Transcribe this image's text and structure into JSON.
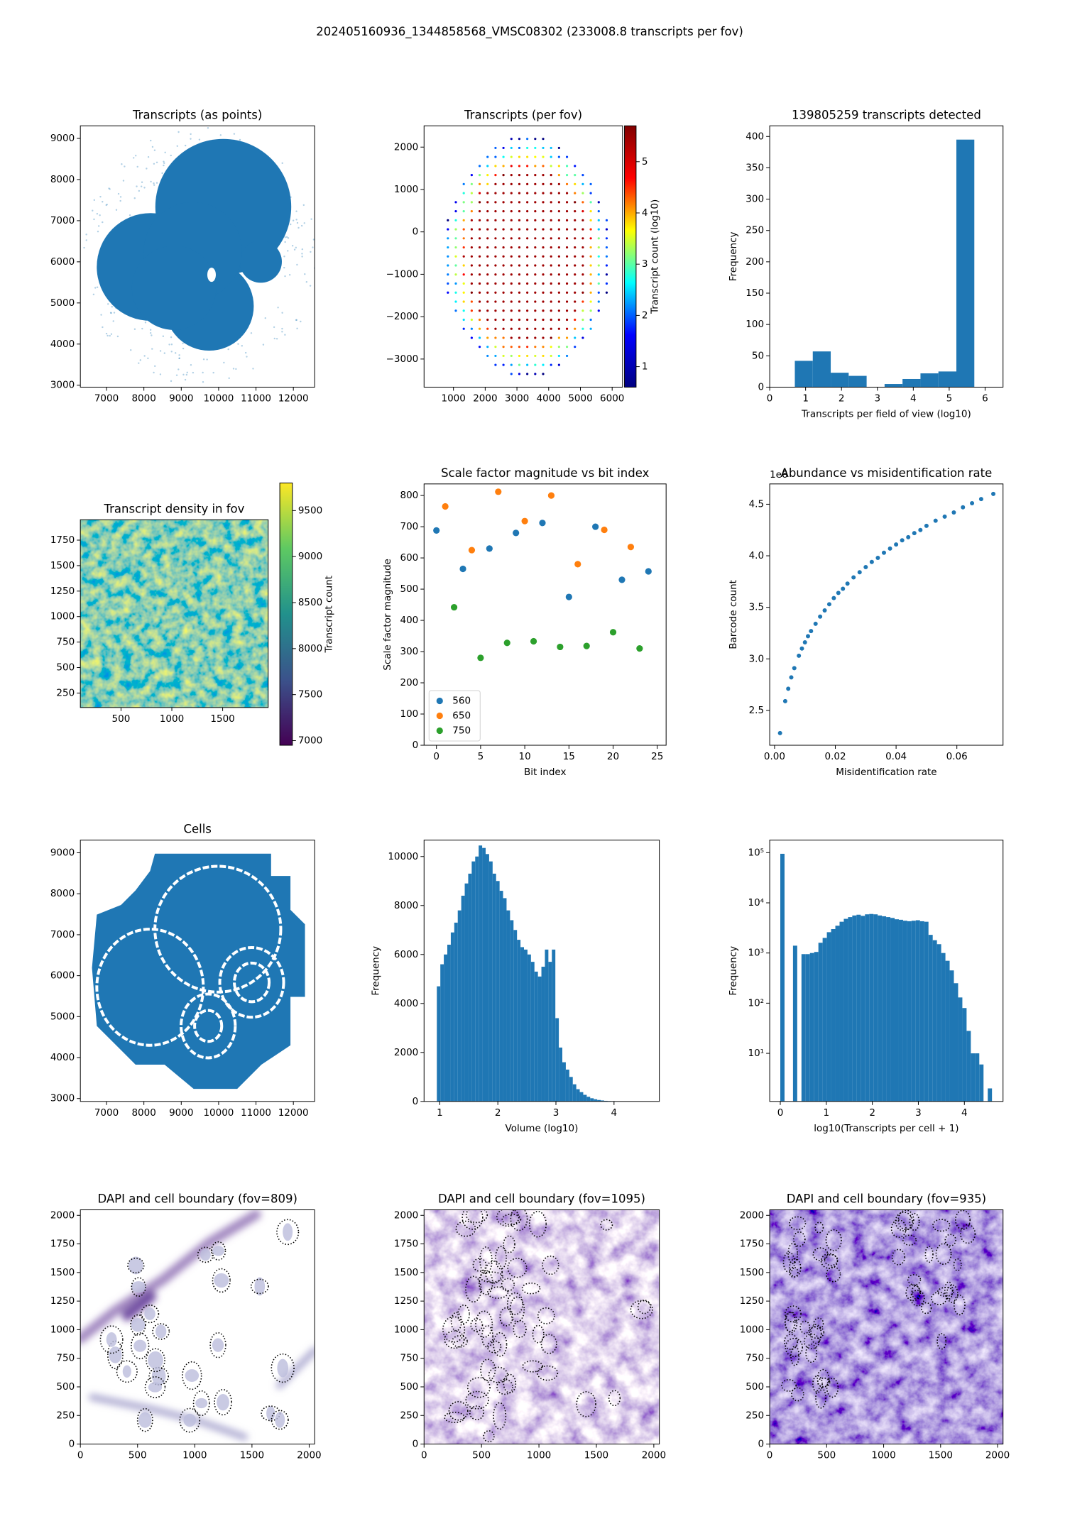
{
  "figure_title": "202405160936_1344858568_VMSC08302 (233008.8 transcripts per fov)",
  "chart_data": [
    {
      "type": "scatter",
      "title": "Transcripts (as points)",
      "xlim": [
        6300,
        12570
      ],
      "ylim": [
        2953,
        9306
      ],
      "xticks": [
        7000,
        8000,
        9000,
        10000,
        11000,
        12000
      ],
      "yticks": [
        3000,
        4000,
        5000,
        6000,
        7000,
        8000,
        9000
      ],
      "color": "#1f77b4"
    },
    {
      "type": "scatter",
      "title": "Transcripts (per fov)",
      "xlim": [
        74,
        6327
      ],
      "ylim": [
        -3663,
        2502
      ],
      "xticks": [
        1000,
        2000,
        3000,
        4000,
        5000,
        6000
      ],
      "yticks": [
        {
          "value": -3000,
          "label": "−3000"
        },
        {
          "value": -2000,
          "label": "−2000"
        },
        {
          "value": -1000,
          "label": "−1000"
        },
        0,
        1000,
        2000
      ],
      "colorbar": {
        "label": "Transcript count (log10)",
        "cmap": "jet",
        "clim": [
          0.6,
          5.7
        ],
        "ticks": [
          1,
          2,
          3,
          4,
          5
        ]
      }
    },
    {
      "type": "histogram",
      "title": "139805259 transcripts detected",
      "xlabel": "Transcripts per field of view (log10)",
      "ylabel": "Frequency",
      "xlim": [
        0,
        6.5
      ],
      "ylim": [
        0,
        417
      ],
      "xticks": [
        0,
        1,
        2,
        3,
        4,
        5,
        6
      ],
      "yticks": [
        0,
        50,
        100,
        150,
        200,
        250,
        300,
        350,
        400
      ],
      "color": "#1f77b4",
      "bins": [
        0.7,
        1.2,
        1.7,
        2.2,
        2.7,
        3.2,
        3.7,
        4.2,
        4.7,
        5.2,
        5.7
      ],
      "values": [
        42,
        57,
        23,
        18,
        0,
        5,
        13,
        22,
        25,
        395
      ]
    },
    {
      "type": "heatmap",
      "title": "Transcript density in fov",
      "xlim": [
        100,
        1948
      ],
      "ylim": [
        108,
        1950
      ],
      "xticks": [
        500,
        1000,
        1500
      ],
      "yticks": [
        250,
        500,
        750,
        1000,
        1250,
        1500,
        1750
      ],
      "colorbar": {
        "label": "Transcript count",
        "cmap": "viridis",
        "clim": [
          6950,
          9800
        ],
        "ticks": [
          7000,
          7500,
          8000,
          8500,
          9000,
          9500
        ]
      }
    },
    {
      "type": "scatter",
      "title": "Scale factor magnitude vs bit index",
      "xlabel": "Bit index",
      "ylabel": "Scale factor magnitude",
      "xlim": [
        -1.4,
        26
      ],
      "ylim": [
        0,
        837
      ],
      "xticks": [
        0,
        5,
        10,
        15,
        20,
        25
      ],
      "yticks": [
        0,
        100,
        200,
        300,
        400,
        500,
        600,
        700,
        800
      ],
      "legend": "lower left",
      "series": [
        {
          "name": "560",
          "color": "#1f77b4",
          "x": [
            0,
            3,
            6,
            9,
            12,
            15,
            18,
            21,
            24
          ],
          "values": [
            688,
            565,
            630,
            680,
            712,
            475,
            700,
            530,
            557
          ]
        },
        {
          "name": "650",
          "color": "#ff7f0e",
          "x": [
            1,
            4,
            7,
            10,
            13,
            16,
            19,
            22
          ],
          "values": [
            765,
            625,
            812,
            718,
            800,
            580,
            690,
            635
          ]
        },
        {
          "name": "750",
          "color": "#2ca02c",
          "x": [
            2,
            5,
            8,
            11,
            14,
            17,
            20,
            23
          ],
          "values": [
            442,
            280,
            328,
            333,
            315,
            318,
            362,
            310
          ]
        }
      ]
    },
    {
      "type": "scatter",
      "title": "Abundance vs misidentification rate",
      "xlabel": "Misidentification rate",
      "ylabel": "Barcode count",
      "y_offset_label": "1e6",
      "xlim": [
        -0.0016,
        0.0752
      ],
      "ylim": [
        2.162,
        4.697
      ],
      "xticks": [
        {
          "value": 0,
          "label": "0.00"
        },
        {
          "value": 0.02,
          "label": "0.02"
        },
        {
          "value": 0.04,
          "label": "0.04"
        },
        {
          "value": 0.06,
          "label": "0.06"
        }
      ],
      "yticks": [
        2.5,
        {
          "value": 3,
          "label": "3.0"
        },
        3.5,
        {
          "value": 4,
          "label": "4.0"
        },
        4.5
      ],
      "color": "#1f77b4",
      "x": [
        0.0018,
        0.0035,
        0.0045,
        0.0055,
        0.0065,
        0.008,
        0.009,
        0.01,
        0.011,
        0.012,
        0.0135,
        0.015,
        0.0165,
        0.018,
        0.0195,
        0.021,
        0.0225,
        0.024,
        0.026,
        0.028,
        0.03,
        0.032,
        0.034,
        0.036,
        0.038,
        0.04,
        0.042,
        0.044,
        0.046,
        0.048,
        0.05,
        0.053,
        0.056,
        0.059,
        0.062,
        0.065,
        0.068,
        0.072
      ],
      "values": [
        2.28,
        2.59,
        2.71,
        2.82,
        2.91,
        3.03,
        3.1,
        3.16,
        3.22,
        3.27,
        3.34,
        3.41,
        3.47,
        3.53,
        3.59,
        3.64,
        3.68,
        3.73,
        3.79,
        3.84,
        3.89,
        3.94,
        3.98,
        4.03,
        4.07,
        4.11,
        4.15,
        4.18,
        4.22,
        4.25,
        4.29,
        4.34,
        4.38,
        4.42,
        4.47,
        4.51,
        4.55,
        4.6
      ]
    },
    {
      "type": "scatter",
      "title": "Cells",
      "xlim": [
        6300,
        12570
      ],
      "ylim": [
        2929,
        9310
      ],
      "xticks": [
        7000,
        8000,
        9000,
        10000,
        11000,
        12000
      ],
      "yticks": [
        3000,
        4000,
        5000,
        6000,
        7000,
        8000,
        9000
      ],
      "color": "#1f77b4"
    },
    {
      "type": "histogram",
      "xlabel": "Volume (log10)",
      "ylabel": "Frequency",
      "xlim": [
        0.73,
        4.78
      ],
      "ylim": [
        0,
        10670
      ],
      "xticks": [
        1,
        2,
        3,
        4
      ],
      "yticks": [
        0,
        2000,
        4000,
        6000,
        8000,
        10000
      ],
      "color": "#1f77b4",
      "bins": [
        0.95,
        1.01,
        1.07,
        1.13,
        1.19,
        1.25,
        1.31,
        1.37,
        1.43,
        1.49,
        1.55,
        1.61,
        1.67,
        1.73,
        1.79,
        1.85,
        1.91,
        1.97,
        2.03,
        2.09,
        2.15,
        2.21,
        2.27,
        2.33,
        2.39,
        2.45,
        2.51,
        2.57,
        2.63,
        2.69,
        2.75,
        2.81,
        2.87,
        2.93,
        2.99,
        3.05,
        3.11,
        3.17,
        3.23,
        3.29,
        3.35,
        3.41,
        3.47,
        3.53,
        3.59,
        3.65,
        3.71,
        3.77,
        3.83,
        3.89,
        3.95,
        4.01,
        4.07,
        4.13,
        4.19,
        4.25,
        4.31,
        4.37
      ],
      "values": [
        4700,
        5600,
        6000,
        6400,
        6900,
        7300,
        7800,
        8400,
        8900,
        9300,
        9800,
        10000,
        10450,
        10350,
        10100,
        9800,
        9300,
        9000,
        8600,
        8300,
        7800,
        7400,
        7000,
        6600,
        6300,
        6200,
        6000,
        5700,
        5300,
        5100,
        5500,
        6200,
        5700,
        6200,
        3400,
        2200,
        1600,
        1300,
        1000,
        700,
        500,
        380,
        270,
        190,
        130,
        90,
        60,
        40,
        25,
        15,
        10,
        6,
        4,
        2,
        1,
        1,
        1
      ]
    },
    {
      "type": "histogram",
      "xlabel": "log10(Transcripts per cell + 1)",
      "ylabel": "Frequency",
      "ylog": true,
      "xlim": [
        -0.23,
        4.84
      ],
      "ylim": [
        1.1,
        178000
      ],
      "xticks": [
        0,
        1,
        2,
        3,
        4
      ],
      "yticks": [
        {
          "value": 10,
          "label": "10¹"
        },
        {
          "value": 100,
          "label": "10²"
        },
        {
          "value": 1000,
          "label": "10³"
        },
        {
          "value": 10000,
          "label": "10⁴"
        },
        {
          "value": 100000,
          "label": "10⁵"
        }
      ],
      "color": "#1f77b4",
      "bins": [
        0,
        0.092,
        0.184,
        0.276,
        0.368,
        0.46,
        0.552,
        0.644,
        0.736,
        0.828,
        0.92,
        1.012,
        1.104,
        1.196,
        1.288,
        1.38,
        1.472,
        1.564,
        1.656,
        1.748,
        1.84,
        1.932,
        2.024,
        2.116,
        2.208,
        2.3,
        2.392,
        2.484,
        2.576,
        2.668,
        2.76,
        2.852,
        2.944,
        3.036,
        3.128,
        3.22,
        3.312,
        3.404,
        3.496,
        3.588,
        3.68,
        3.772,
        3.864,
        3.956,
        4.048,
        4.14,
        4.232,
        4.324,
        4.416,
        4.508,
        4.6
      ],
      "values": [
        95000,
        0,
        0,
        1400,
        0,
        950,
        950,
        1000,
        1050,
        1600,
        2000,
        2600,
        3000,
        3500,
        4200,
        4800,
        5200,
        5600,
        5800,
        5500,
        5900,
        6000,
        5900,
        5600,
        5400,
        5200,
        5000,
        4700,
        4600,
        4400,
        4300,
        4400,
        4500,
        4300,
        4200,
        2300,
        1800,
        1500,
        1000,
        700,
        450,
        250,
        130,
        80,
        28,
        10,
        10,
        6,
        0,
        2
      ]
    },
    {
      "type": "image",
      "title": "DAPI and cell boundary (fov=809)",
      "xlim": [
        0,
        2048
      ],
      "ylim": [
        0,
        2048
      ],
      "xticks": [
        0,
        500,
        1000,
        1500,
        2000
      ],
      "yticks": [
        0,
        250,
        500,
        750,
        1000,
        1250,
        1500,
        1750,
        2000
      ]
    },
    {
      "type": "image",
      "title": "DAPI and cell boundary (fov=1095)",
      "xlim": [
        0,
        2048
      ],
      "ylim": [
        0,
        2048
      ],
      "xticks": [
        0,
        500,
        1000,
        1500,
        2000
      ],
      "yticks": [
        0,
        250,
        500,
        750,
        1000,
        1250,
        1500,
        1750,
        2000
      ]
    },
    {
      "type": "image",
      "title": "DAPI and cell boundary (fov=935)",
      "xlim": [
        0,
        2048
      ],
      "ylim": [
        0,
        2048
      ],
      "xticks": [
        0,
        500,
        1000,
        1500,
        2000
      ],
      "yticks": [
        0,
        250,
        500,
        750,
        1000,
        1250,
        1500,
        1750,
        2000
      ]
    }
  ]
}
